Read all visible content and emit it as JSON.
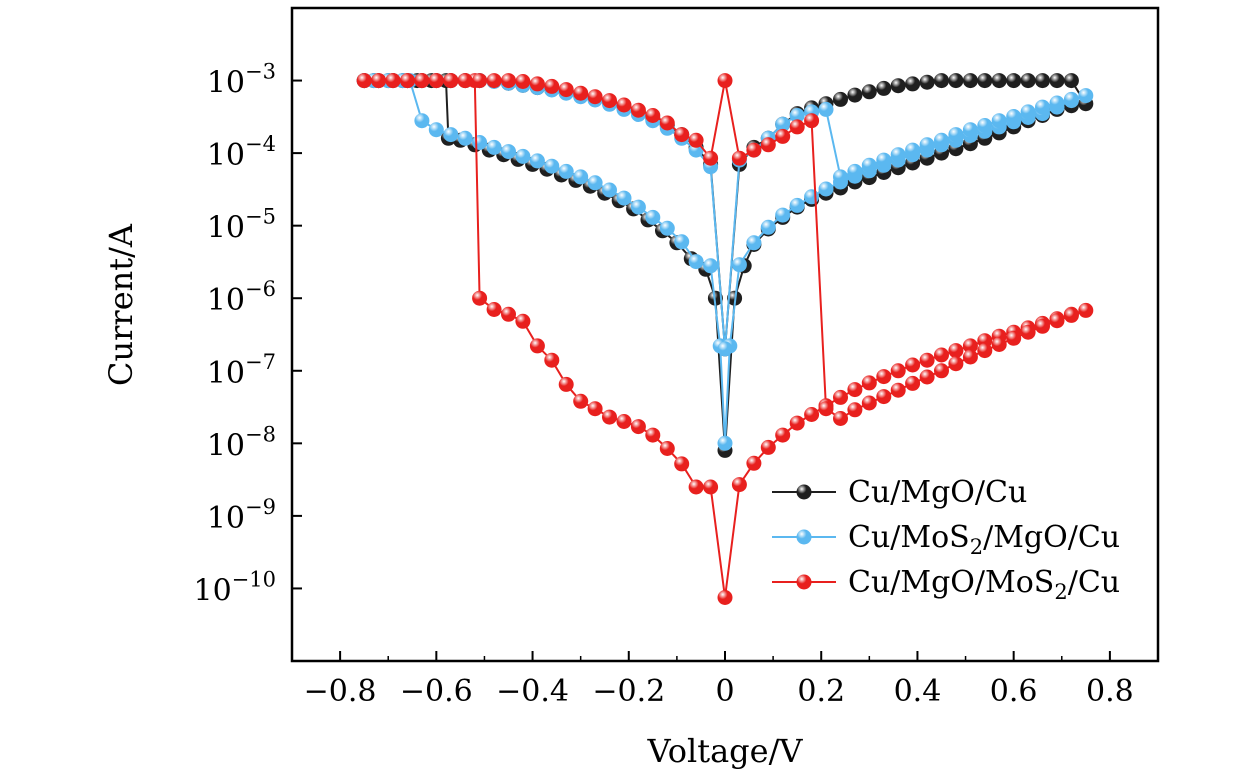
{
  "chart_data": {
    "type": "line",
    "xlabel": "Voltage/V",
    "ylabel": "Current/A",
    "xlim": [
      -0.9,
      0.9
    ],
    "ylim": [
      1e-11,
      0.01
    ],
    "yscale": "log",
    "grid": false,
    "legend_position": "bottom-right",
    "x_ticks": [
      -0.8,
      -0.6,
      -0.4,
      -0.2,
      0,
      0.2,
      0.4,
      0.6,
      0.8
    ],
    "x_tick_labels": [
      "−0.8",
      "−0.6",
      "−0.4",
      "−0.2",
      "0",
      "0.2",
      "0.4",
      "0.6",
      "0.8"
    ],
    "y_ticks": [
      0.001,
      0.0001,
      1e-05,
      1e-06,
      1e-07,
      1e-08,
      1e-09,
      1e-10
    ],
    "y_tick_labels": [
      "10−3",
      "10−4",
      "10−5",
      "10−6",
      "10−7",
      "10−8",
      "10−9",
      "10−10"
    ],
    "series": [
      {
        "name": "Cu/MgO/Cu",
        "legend_base": "Cu/MgO/Cu",
        "color": "#1f1f1f",
        "x": [
          -0.75,
          -0.73,
          -0.7,
          -0.67,
          -0.64,
          -0.61,
          -0.58,
          -0.575,
          -0.55,
          -0.52,
          -0.49,
          -0.46,
          -0.43,
          -0.4,
          -0.37,
          -0.34,
          -0.31,
          -0.28,
          -0.25,
          -0.22,
          -0.19,
          -0.16,
          -0.13,
          -0.1,
          -0.07,
          -0.04,
          -0.02,
          0,
          0.02,
          0.04,
          0.06,
          0.09,
          0.12,
          0.15,
          0.18,
          0.21,
          0.24,
          0.27,
          0.3,
          0.33,
          0.36,
          0.39,
          0.42,
          0.45,
          0.48,
          0.51,
          0.54,
          0.57,
          0.6,
          0.63,
          0.66,
          0.69,
          0.72,
          0.75,
          0.72,
          0.69,
          0.66,
          0.63,
          0.6,
          0.57,
          0.54,
          0.51,
          0.48,
          0.45,
          0.42,
          0.39,
          0.36,
          0.33,
          0.3,
          0.27,
          0.24,
          0.21,
          0.18,
          0.15,
          0.12,
          0.09,
          0.06,
          0.03,
          0,
          -0.03,
          -0.06,
          -0.09,
          -0.12,
          -0.15,
          -0.18,
          -0.21,
          -0.24,
          -0.27,
          -0.3,
          -0.33,
          -0.36,
          -0.39,
          -0.42,
          -0.45,
          -0.48,
          -0.51,
          -0.54,
          -0.57,
          -0.6,
          -0.63,
          -0.66,
          -0.69,
          -0.72,
          -0.75
        ],
        "y": [
          0.001,
          0.001,
          0.001,
          0.001,
          0.001,
          0.001,
          0.001,
          0.00016,
          0.00015,
          0.00013,
          0.00011,
          9.5e-05,
          8.2e-05,
          7e-05,
          6e-05,
          5e-05,
          4.2e-05,
          3.5e-05,
          2.8e-05,
          2.2e-05,
          1.7e-05,
          1.2e-05,
          8.5e-06,
          5.8e-06,
          3.5e-06,
          2.5e-06,
          1e-06,
          8e-09,
          1e-06,
          2.8e-06,
          5.5e-06,
          9e-06,
          1.3e-05,
          1.8e-05,
          2.3e-05,
          2.8e-05,
          3.3e-05,
          4e-05,
          4.6e-05,
          5.4e-05,
          6.3e-05,
          7.3e-05,
          8.5e-05,
          0.0001,
          0.000115,
          0.000135,
          0.00016,
          0.00019,
          0.00023,
          0.00028,
          0.00033,
          0.0004,
          0.00045,
          0.00048,
          0.001,
          0.001,
          0.001,
          0.001,
          0.001,
          0.001,
          0.001,
          0.001,
          0.001,
          0.001,
          0.00095,
          0.0009,
          0.00085,
          0.00078,
          0.0007,
          0.00063,
          0.00055,
          0.00048,
          0.00042,
          0.00035,
          0.00025,
          0.00016,
          0.00012,
          7e-05,
          2e-07,
          7e-05,
          0.00012,
          0.00018,
          0.00024,
          0.0003,
          0.00036,
          0.00043,
          0.0005,
          0.00056,
          0.00062,
          0.00068,
          0.00075,
          0.0008,
          0.00086,
          0.00092,
          0.00098,
          0.001,
          0.001,
          0.001,
          0.001,
          0.001,
          0.001,
          0.001,
          0.001,
          0.001
        ]
      },
      {
        "name": "Cu/MoS2/MgO/Cu",
        "legend_base": "Cu/MoS",
        "legend_sub": "2",
        "legend_tail": "/MgO/Cu",
        "color": "#5bb8f0",
        "x": [
          -0.75,
          -0.73,
          -0.7,
          -0.67,
          -0.655,
          -0.63,
          -0.6,
          -0.57,
          -0.54,
          -0.51,
          -0.48,
          -0.45,
          -0.42,
          -0.39,
          -0.36,
          -0.33,
          -0.3,
          -0.27,
          -0.24,
          -0.21,
          -0.18,
          -0.15,
          -0.12,
          -0.09,
          -0.06,
          -0.03,
          -0.01,
          0,
          0.01,
          0.03,
          0.06,
          0.09,
          0.12,
          0.15,
          0.18,
          0.21,
          0.24,
          0.27,
          0.3,
          0.33,
          0.36,
          0.39,
          0.42,
          0.45,
          0.48,
          0.51,
          0.54,
          0.57,
          0.6,
          0.63,
          0.66,
          0.69,
          0.72,
          0.75,
          0.72,
          0.69,
          0.66,
          0.63,
          0.6,
          0.57,
          0.54,
          0.51,
          0.48,
          0.45,
          0.42,
          0.39,
          0.36,
          0.33,
          0.3,
          0.27,
          0.24,
          0.21,
          0.18,
          0.15,
          0.12,
          0.09,
          0.06,
          0.03,
          0,
          -0.03,
          -0.06,
          -0.09,
          -0.12,
          -0.15,
          -0.18,
          -0.21,
          -0.24,
          -0.27,
          -0.3,
          -0.33,
          -0.36,
          -0.39,
          -0.42,
          -0.45,
          -0.48,
          -0.51,
          -0.54,
          -0.57,
          -0.6,
          -0.63,
          -0.66,
          -0.69,
          -0.72,
          -0.75
        ],
        "y": [
          0.001,
          0.001,
          0.001,
          0.001,
          0.001,
          0.00028,
          0.00021,
          0.00018,
          0.00016,
          0.00014,
          0.00012,
          0.000105,
          9e-05,
          7.8e-05,
          6.6e-05,
          5.6e-05,
          4.7e-05,
          3.9e-05,
          3.1e-05,
          2.4e-05,
          1.8e-05,
          1.3e-05,
          9.2e-06,
          6e-06,
          3.2e-06,
          2.8e-06,
          2.2e-07,
          1e-08,
          2.2e-07,
          2.9e-06,
          5.8e-06,
          9.5e-06,
          1.4e-05,
          1.9e-05,
          2.5e-05,
          3.2e-05,
          4e-05,
          4.8e-05,
          5.7e-05,
          6.8e-05,
          8e-05,
          9.5e-05,
          0.00011,
          0.00013,
          0.00015,
          0.000175,
          0.0002,
          0.00023,
          0.00027,
          0.00031,
          0.00035,
          0.00043,
          0.00053,
          0.00062,
          0.00055,
          0.00049,
          0.00043,
          0.00037,
          0.00032,
          0.00028,
          0.00024,
          0.00021,
          0.00018,
          0.00015,
          0.00013,
          0.00011,
          9.5e-05,
          8e-05,
          6.8e-05,
          5.6e-05,
          4.7e-05,
          0.0004,
          0.00037,
          0.00033,
          0.00025,
          0.00016,
          0.00011,
          8e-05,
          2e-07,
          6.5e-05,
          0.00011,
          0.00016,
          0.00022,
          0.00028,
          0.00034,
          0.0004,
          0.00047,
          0.00054,
          0.0006,
          0.00067,
          0.00074,
          0.0008,
          0.00086,
          0.00092,
          0.00097,
          0.001,
          0.001,
          0.001,
          0.001,
          0.001,
          0.001,
          0.001,
          0.001,
          0.001
        ]
      },
      {
        "name": "Cu/MgO/MoS2/Cu",
        "legend_base": "Cu/MgO/MoS",
        "legend_sub": "2",
        "legend_tail": "/Cu",
        "color": "#e8201e",
        "x": [
          -0.75,
          -0.72,
          -0.69,
          -0.66,
          -0.63,
          -0.6,
          -0.57,
          -0.54,
          -0.52,
          -0.51,
          -0.48,
          -0.45,
          -0.42,
          -0.39,
          -0.36,
          -0.33,
          -0.3,
          -0.27,
          -0.24,
          -0.21,
          -0.18,
          -0.15,
          -0.12,
          -0.09,
          -0.06,
          -0.03,
          0,
          0.03,
          0.06,
          0.09,
          0.12,
          0.15,
          0.18,
          0.21,
          0.24,
          0.27,
          0.3,
          0.33,
          0.36,
          0.39,
          0.42,
          0.45,
          0.48,
          0.51,
          0.54,
          0.57,
          0.6,
          0.63,
          0.66,
          0.69,
          0.72,
          0.75,
          0.72,
          0.69,
          0.66,
          0.63,
          0.6,
          0.57,
          0.54,
          0.51,
          0.48,
          0.45,
          0.42,
          0.39,
          0.36,
          0.33,
          0.3,
          0.27,
          0.24,
          0.21,
          0.18,
          0.15,
          0.12,
          0.09,
          0.06,
          0.03,
          0,
          -0.03,
          -0.06,
          -0.09,
          -0.12,
          -0.15,
          -0.18,
          -0.21,
          -0.24,
          -0.27,
          -0.3,
          -0.33,
          -0.36,
          -0.39,
          -0.42,
          -0.45,
          -0.48,
          -0.51,
          -0.54,
          -0.57,
          -0.6,
          -0.63,
          -0.66,
          -0.69,
          -0.72,
          -0.75
        ],
        "y": [
          0.001,
          0.001,
          0.001,
          0.001,
          0.001,
          0.001,
          0.001,
          0.001,
          0.001,
          1e-06,
          7e-07,
          6e-07,
          4.8e-07,
          2.2e-07,
          1.4e-07,
          6.5e-08,
          3.8e-08,
          3e-08,
          2.3e-08,
          2e-08,
          1.7e-08,
          1.3e-08,
          8.5e-09,
          5.2e-09,
          2.5e-09,
          2.5e-09,
          7.5e-11,
          2.7e-09,
          5.3e-09,
          8.8e-09,
          1.3e-08,
          1.9e-08,
          2.5e-08,
          3.3e-08,
          4.3e-08,
          5.5e-08,
          6.8e-08,
          8.3e-08,
          1e-07,
          1.2e-07,
          1.4e-07,
          1.65e-07,
          1.9e-07,
          2.2e-07,
          2.6e-07,
          3e-07,
          3.4e-07,
          3.9e-07,
          4.5e-07,
          5.2e-07,
          6e-07,
          6.8e-07,
          5.8e-07,
          4.9e-07,
          4.1e-07,
          3.4e-07,
          2.8e-07,
          2.3e-07,
          1.9e-07,
          1.55e-07,
          1.25e-07,
          1e-07,
          8.2e-08,
          6.7e-08,
          5.4e-08,
          4.4e-08,
          3.6e-08,
          2.9e-08,
          2.2e-08,
          3e-08,
          0.00028,
          0.00023,
          0.00017,
          0.00013,
          0.00011,
          8.5e-05,
          0.001,
          8.5e-05,
          0.00015,
          0.00018,
          0.00026,
          0.00033,
          0.00039,
          0.00046,
          0.00053,
          0.0006,
          0.00067,
          0.00075,
          0.00083,
          0.0009,
          0.00097,
          0.001,
          0.001,
          0.001,
          0.001,
          0.001,
          0.001,
          0.001,
          0.001,
          0.001,
          0.001,
          0.001
        ]
      }
    ]
  }
}
